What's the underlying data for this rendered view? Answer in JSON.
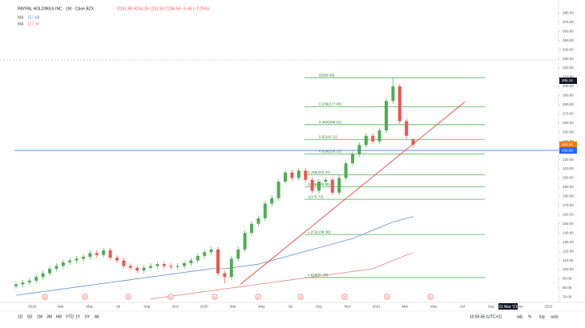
{
  "chart_data": {
    "type": "candlestick",
    "title": "PAYPAL HOLDINGS INC · 1W · Cboe BZX",
    "ohlc_text": "O241.98 H243.35 L232.63 C236.54 −5.44 (−2.25%)",
    "up_color": "#4caf50",
    "down_color": "#ef5350",
    "series": [
      {
        "name": "PYPL",
        "open": [
          82,
          84,
          86,
          88,
          92,
          96,
          101,
          104,
          108,
          110,
          112,
          114,
          118,
          116,
          121,
          113,
          110,
          104,
          102,
          99,
          102,
          104,
          106,
          104,
          103,
          104,
          107,
          110,
          115,
          119,
          122,
          96,
          92,
          112,
          122,
          140,
          150,
          156,
          172,
          178,
          196,
          206,
          200,
          208,
          198,
          186,
          196,
          198,
          184,
          200,
          216,
          226,
          236,
          246,
          240,
          252,
          284,
          300,
          262,
          241.98
        ],
        "high": [
          87,
          89,
          91,
          95,
          99,
          104,
          107,
          111,
          113,
          115,
          117,
          121,
          121,
          124,
          124,
          116,
          113,
          107,
          105,
          105,
          107,
          109,
          109,
          107,
          107,
          110,
          113,
          118,
          122,
          125,
          125,
          99,
          115,
          125,
          143,
          153,
          159,
          175,
          181,
          199,
          209,
          209,
          211,
          211,
          201,
          199,
          201,
          201,
          203,
          219,
          229,
          239,
          249,
          249,
          255,
          287,
          309.49,
          303,
          265,
          243.35
        ],
        "low": [
          79,
          81,
          83,
          85,
          89,
          93,
          98,
          101,
          105,
          107,
          109,
          111,
          113,
          113,
          110,
          107,
          101,
          99,
          96,
          96,
          99,
          101,
          101,
          100,
          100,
          101,
          104,
          107,
          112,
          116,
          93,
          85,
          89,
          109,
          119,
          137,
          147,
          153,
          169,
          175,
          193,
          197,
          197,
          195,
          183,
          183,
          193,
          181,
          181,
          197,
          213,
          223,
          233,
          237,
          237,
          249,
          281,
          259,
          243,
          232.63
        ],
        "close": [
          84,
          86,
          88,
          92,
          96,
          101,
          104,
          108,
          110,
          112,
          114,
          118,
          116,
          121,
          113,
          110,
          104,
          102,
          99,
          102,
          104,
          106,
          104,
          103,
          104,
          107,
          110,
          115,
          119,
          122,
          96,
          92,
          112,
          122,
          140,
          150,
          156,
          172,
          178,
          196,
          206,
          200,
          208,
          198,
          186,
          196,
          198,
          184,
          200,
          216,
          226,
          236,
          246,
          240,
          252,
          284,
          300,
          262,
          246,
          236.54
        ]
      }
    ],
    "lines": [
      {
        "name": "MA",
        "color": "#5b8fd6",
        "values": [
          72,
          73,
          74,
          75,
          76,
          77,
          78,
          79,
          80,
          81,
          82,
          83,
          84,
          85,
          86,
          87,
          88,
          89,
          90,
          91,
          92,
          93,
          94,
          95,
          96,
          97,
          98,
          99,
          100,
          101,
          101,
          101,
          102,
          103,
          104,
          105,
          106,
          108,
          110,
          112,
          114,
          116,
          118,
          120,
          122,
          124,
          126,
          128,
          130,
          132,
          134,
          137,
          140,
          143,
          146,
          149,
          152,
          154,
          156,
          157.68
        ]
      },
      {
        "name": "MA",
        "color": "#f08080",
        "values": [
          null,
          null,
          null,
          null,
          null,
          null,
          null,
          null,
          null,
          null,
          null,
          null,
          null,
          null,
          null,
          null,
          null,
          null,
          null,
          null,
          68,
          69,
          70,
          71,
          72,
          73,
          74,
          75,
          76,
          77,
          78,
          79,
          80,
          81,
          82,
          83,
          84,
          85,
          86,
          87,
          88,
          89,
          90,
          91,
          92,
          93,
          94,
          95,
          96,
          97,
          98,
          99,
          100,
          101,
          104,
          107,
          110,
          113,
          116,
          117.94
        ]
      }
    ],
    "ylim": [
      66,
      389
    ],
    "yticks": [
      {
        "value": 70,
        "label": "70.00"
      },
      {
        "value": 80,
        "label": "80.00"
      },
      {
        "value": 90,
        "label": "90.00"
      },
      {
        "value": 100,
        "label": "100.00"
      },
      {
        "value": 110,
        "label": "110.00"
      },
      {
        "value": 120,
        "label": "120.00"
      },
      {
        "value": 130,
        "label": "130.00"
      },
      {
        "value": 140,
        "label": "140.00"
      },
      {
        "value": 150,
        "label": "150.00"
      },
      {
        "value": 160,
        "label": "160.00"
      },
      {
        "value": 170,
        "label": "170.00"
      },
      {
        "value": 180,
        "label": "180.00"
      },
      {
        "value": 190,
        "label": "190.00"
      },
      {
        "value": 200,
        "label": "200.00"
      },
      {
        "value": 210,
        "label": "210.00"
      },
      {
        "value": 220,
        "label": "220.00"
      },
      {
        "value": 230,
        "label": "230.00"
      },
      {
        "value": 240,
        "label": "240.00"
      },
      {
        "value": 250,
        "label": "250.00"
      },
      {
        "value": 260,
        "label": "260.00"
      },
      {
        "value": 270,
        "label": "270.00"
      },
      {
        "value": 280,
        "label": "280.00"
      },
      {
        "value": 290,
        "label": "290.00"
      },
      {
        "value": 300,
        "label": "300.00"
      },
      {
        "value": 310,
        "label": "310.00"
      },
      {
        "value": 320,
        "label": "320.00"
      },
      {
        "value": 330,
        "label": "330.00"
      },
      {
        "value": 340,
        "label": "340.00"
      },
      {
        "value": 350,
        "label": "350.00"
      },
      {
        "value": 360,
        "label": "360.00"
      },
      {
        "value": 370,
        "label": "370.00"
      },
      {
        "value": 380,
        "label": "380.00"
      }
    ],
    "time_labels": [
      "2019",
      "Mar",
      "May",
      "Jul",
      "Sep",
      "Nov",
      "2020",
      "Mar",
      "May",
      "Jul",
      "Sep",
      "Nov",
      "2021",
      "Mar",
      "May",
      "Jul",
      "Sep",
      "Nov",
      "2022"
    ],
    "fib_levels": [
      {
        "value": 309.49,
        "label": "0(309.49)"
      },
      {
        "value": 277.68,
        "label": "0.236(277.68)"
      },
      {
        "value": 258.21,
        "label": "0.382(258.21)"
      },
      {
        "value": 242.11,
        "label": "0.5(242.11)"
      },
      {
        "value": 226.21,
        "label": "0.618(226.21)"
      },
      {
        "value": 203.37,
        "label": "0.786(203.37)"
      },
      {
        "value": 190.3,
        "label": "0.886(190.30)"
      },
      {
        "value": 176.73,
        "label": "1(176.73)"
      },
      {
        "value": 138.38,
        "label": "1.272(138.38)"
      },
      {
        "value": 91.36,
        "label": "1.618(91.36)"
      }
    ],
    "price_markers": [
      {
        "value": 306.15,
        "label": "306.15",
        "color": "#131722"
      },
      {
        "value": 236.54,
        "label": "236.54",
        "color": "#f57c00"
      },
      {
        "value": 230,
        "label": "230.00",
        "color": "#2962ff"
      }
    ],
    "crosshair_date": "11 Mar '21",
    "event_marker": "E"
  },
  "toolbar": {
    "ranges": [
      "1D",
      "5D",
      "1M",
      "3M",
      "6M",
      "YTD",
      "1Y",
      "5Y",
      "All"
    ],
    "clock": "10:59:45 (UTC+2)",
    "options": [
      "adj",
      "%",
      "log",
      "auto"
    ]
  }
}
